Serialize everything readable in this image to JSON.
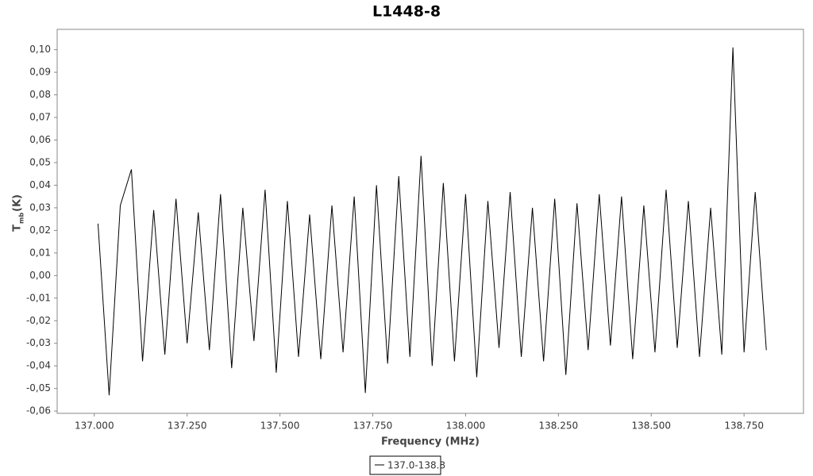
{
  "chart_data": {
    "type": "line",
    "title": "L1448-8",
    "x_label": "Frequency (MHz)",
    "y_label": "T",
    "y_label_sub": "mb",
    "y_label_unit": "(K)",
    "xlim": [
      136.9,
      138.91
    ],
    "ylim": [
      -0.061,
      0.109
    ],
    "xticks": [
      {
        "value": 137.0,
        "label": "137.000"
      },
      {
        "value": 137.25,
        "label": "137.250"
      },
      {
        "value": 137.5,
        "label": "137.500"
      },
      {
        "value": 137.75,
        "label": "137.750"
      },
      {
        "value": 138.0,
        "label": "138.000"
      },
      {
        "value": 138.25,
        "label": "138.250"
      },
      {
        "value": 138.5,
        "label": "138.500"
      },
      {
        "value": 138.75,
        "label": "138.750"
      }
    ],
    "yticks": [
      {
        "value": -0.06,
        "label": "-0,06"
      },
      {
        "value": -0.05,
        "label": "-0,05"
      },
      {
        "value": -0.04,
        "label": "-0,04"
      },
      {
        "value": -0.03,
        "label": "-0,03"
      },
      {
        "value": -0.02,
        "label": "-0,02"
      },
      {
        "value": -0.01,
        "label": "-0,01"
      },
      {
        "value": 0,
        "label": "0,00"
      },
      {
        "value": 0.01,
        "label": "0,01"
      },
      {
        "value": 0.02,
        "label": "0,02"
      },
      {
        "value": 0.03,
        "label": "0,03"
      },
      {
        "value": 0.04,
        "label": "0,04"
      },
      {
        "value": 0.05,
        "label": "0,05"
      },
      {
        "value": 0.06,
        "label": "0,06"
      },
      {
        "value": 0.07,
        "label": "0,07"
      },
      {
        "value": 0.08,
        "label": "0,08"
      },
      {
        "value": 0.09,
        "label": "0,09"
      },
      {
        "value": 0.1,
        "label": "0,10"
      }
    ],
    "x": [
      137.01,
      137.04,
      137.07,
      137.1,
      137.13,
      137.16,
      137.19,
      137.22,
      137.25,
      137.28,
      137.31,
      137.34,
      137.37,
      137.4,
      137.43,
      137.46,
      137.49,
      137.52,
      137.55,
      137.58,
      137.61,
      137.64,
      137.67,
      137.7,
      137.73,
      137.76,
      137.79,
      137.82,
      137.85,
      137.88,
      137.91,
      137.94,
      137.97,
      138.0,
      138.03,
      138.06,
      138.09,
      138.12,
      138.15,
      138.18,
      138.21,
      138.24,
      138.27,
      138.3,
      138.33,
      138.36,
      138.39,
      138.42,
      138.45,
      138.48,
      138.51,
      138.54,
      138.57,
      138.6,
      138.63,
      138.66,
      138.69,
      138.72,
      138.75,
      138.78,
      138.81
    ],
    "series": [
      {
        "name": "137.0-138.8",
        "color": "#000000",
        "values": [
          0.023,
          -0.053,
          0.031,
          0.047,
          -0.038,
          0.029,
          -0.035,
          0.034,
          -0.03,
          0.028,
          -0.033,
          0.036,
          -0.041,
          0.03,
          -0.029,
          0.038,
          -0.043,
          0.033,
          -0.036,
          0.027,
          -0.037,
          0.031,
          -0.034,
          0.035,
          -0.052,
          0.04,
          -0.039,
          0.044,
          -0.036,
          0.053,
          -0.04,
          0.041,
          -0.038,
          0.036,
          -0.045,
          0.033,
          -0.032,
          0.037,
          -0.036,
          0.03,
          -0.038,
          0.034,
          -0.044,
          0.032,
          -0.033,
          0.036,
          -0.031,
          0.035,
          -0.037,
          0.031,
          -0.034,
          0.038,
          -0.032,
          0.033,
          -0.036,
          0.03,
          -0.035,
          0.101,
          -0.034,
          0.037,
          -0.033
        ]
      }
    ]
  }
}
